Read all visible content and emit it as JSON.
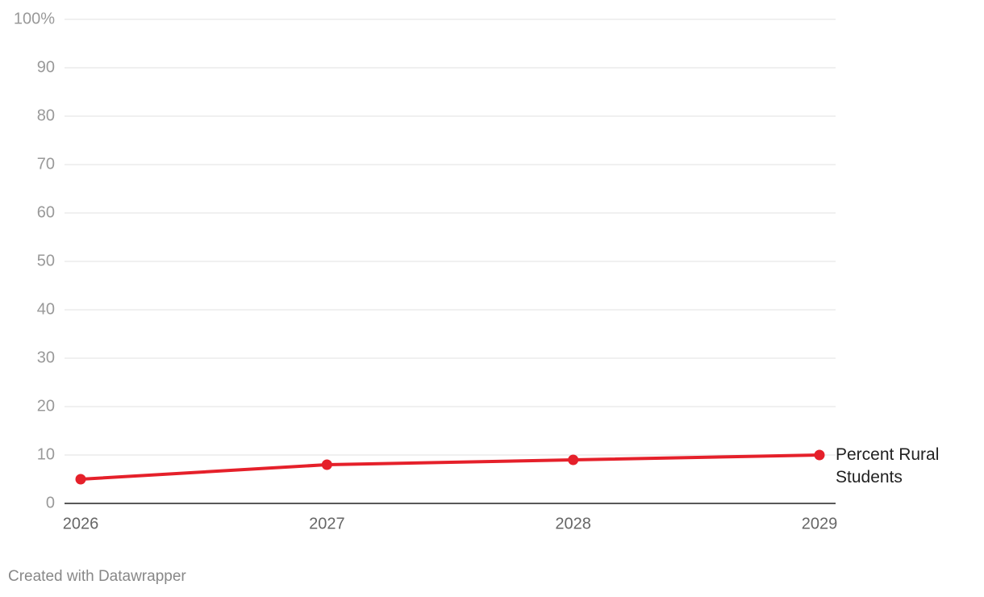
{
  "chart_data": {
    "type": "line",
    "x": [
      2026,
      2027,
      2028,
      2029
    ],
    "xlim": [
      2026,
      2029
    ],
    "xticks": [
      2026,
      2027,
      2028,
      2029
    ],
    "series": [
      {
        "name": "Percent Rural Students",
        "color": "#e5202a",
        "values": [
          5,
          8,
          9,
          10
        ]
      }
    ],
    "ylim": [
      0,
      100
    ],
    "yticks": [
      0,
      10,
      20,
      30,
      40,
      50,
      60,
      70,
      80,
      90,
      {
        "value": 100,
        "label": "100%"
      }
    ],
    "grid": true
  },
  "footer": "Created with Datawrapper"
}
